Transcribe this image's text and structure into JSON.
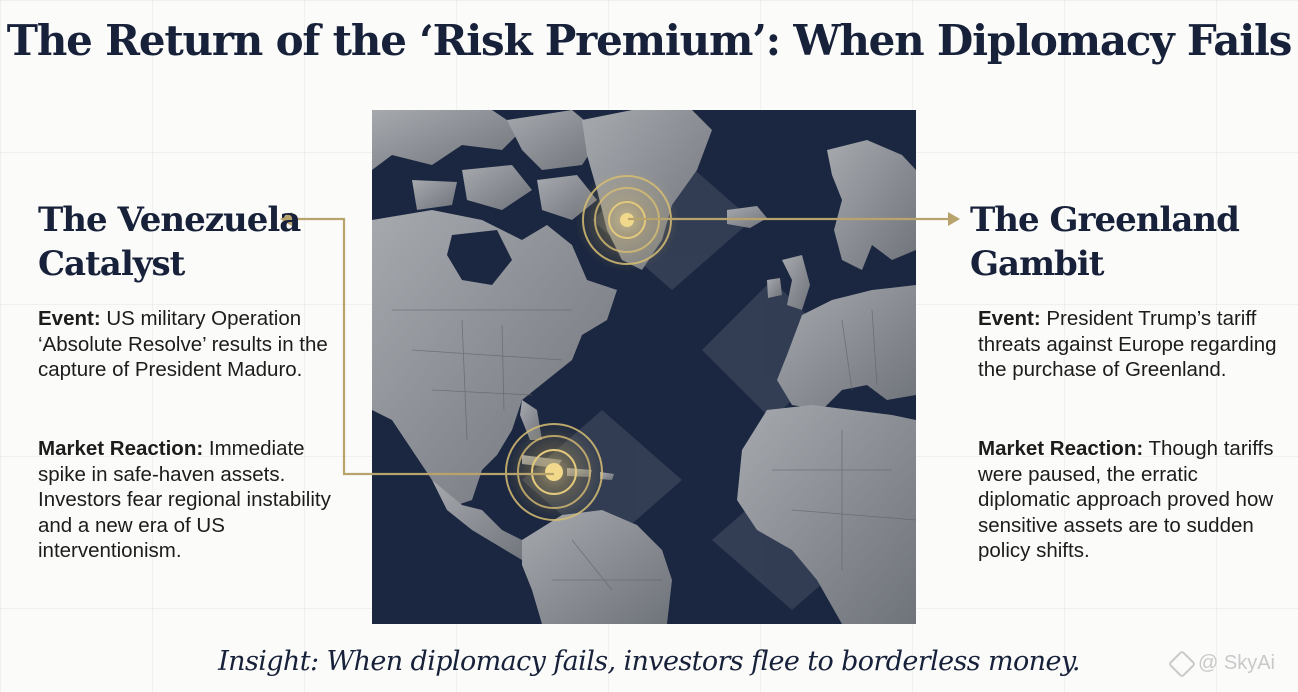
{
  "title": "The Return of the ‘Risk Premium’: When Diplomacy Fails",
  "venezuela": {
    "heading_line1": "The Venezuela",
    "heading_line2": "Catalyst",
    "event_label": "Event:",
    "event_text": " US military Operation ‘Absolute Resolve’ results in the capture of President Maduro.",
    "market_label": "Market Reaction:",
    "market_text": " Immediate spike in safe-haven assets. Investors fear regional instability and a new era of US interventionism."
  },
  "greenland": {
    "heading_line1": "The Greenland",
    "heading_line2": "Gambit",
    "event_label": "Event:",
    "event_text": " President Trump’s tariff threats against Europe regarding the purchase of Greenland.",
    "market_label": "Market Reaction:",
    "market_text": " Though tariffs were paused, the erratic diplomatic approach proved how sensitive assets are to sudden policy shifts."
  },
  "insight": "Insight: When diplomacy fails, investors flee to borderless money.",
  "watermark": "@ SkyAi",
  "colors": {
    "navy": "#17213a",
    "ocean": "#1b2740",
    "gold": "#b8a36c",
    "land": "#8d9096"
  },
  "icons": {
    "greenland_marker": "target-pulse-icon",
    "venezuela_marker": "target-pulse-icon",
    "watermark": "diamond-logo-icon"
  }
}
